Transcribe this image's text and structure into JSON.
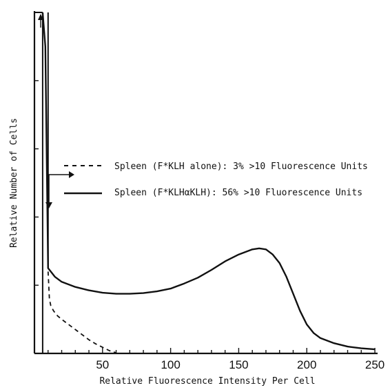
{
  "chart_data": {
    "type": "line",
    "xlabel": "Relative Fluorescence Intensity Per Cell",
    "ylabel": "Relative Number of Cells",
    "xlim": [
      0,
      252
    ],
    "ylim": [
      0,
      1
    ],
    "x_ticks": [
      50,
      100,
      150,
      200,
      250
    ],
    "x_minor_step": 10,
    "y_ticks": [
      0,
      0.2,
      0.4,
      0.6,
      0.8,
      1.0
    ],
    "legend_placement": "center",
    "series": [
      {
        "name": "Spleen (F*KLH alone): 3% >10 Fluorescence Units",
        "style": "dashed",
        "x": [
          10,
          11,
          12,
          14,
          17,
          20,
          25,
          30,
          35,
          40,
          45,
          50,
          55,
          60
        ],
        "y": [
          0.24,
          0.16,
          0.14,
          0.125,
          0.11,
          0.1,
          0.085,
          0.07,
          0.055,
          0.04,
          0.028,
          0.018,
          0.008,
          0.002
        ]
      },
      {
        "name": "Spleen (F*KLHαKLH): 56% >10 Fluorescence Units",
        "style": "solid",
        "x": [
          6,
          8,
          10,
          12,
          15,
          20,
          30,
          40,
          50,
          60,
          70,
          80,
          90,
          100,
          110,
          120,
          130,
          140,
          150,
          160,
          165,
          170,
          175,
          180,
          185,
          190,
          195,
          200,
          205,
          210,
          220,
          230,
          240,
          250
        ],
        "y": [
          1.0,
          0.9,
          0.25,
          0.24,
          0.225,
          0.21,
          0.195,
          0.185,
          0.178,
          0.175,
          0.175,
          0.177,
          0.182,
          0.19,
          0.205,
          0.222,
          0.245,
          0.27,
          0.29,
          0.305,
          0.308,
          0.305,
          0.29,
          0.265,
          0.225,
          0.175,
          0.125,
          0.085,
          0.06,
          0.045,
          0.03,
          0.02,
          0.015,
          0.012
        ]
      }
    ]
  }
}
